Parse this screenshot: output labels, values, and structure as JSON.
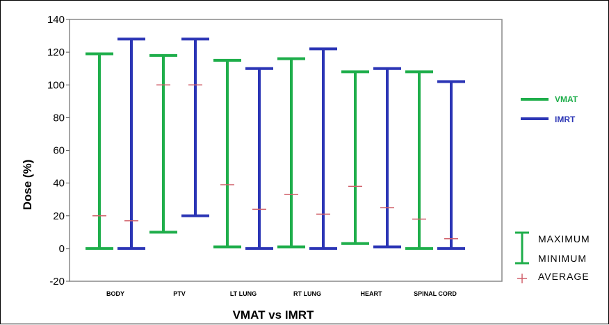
{
  "chart_data": {
    "type": "range",
    "title": "",
    "xlabel": "VMAT vs IMRT",
    "ylabel": "Dose (%)",
    "ylim": [
      -20,
      140
    ],
    "yticks": [
      -20,
      0,
      20,
      40,
      60,
      80,
      100,
      120,
      140
    ],
    "categories": [
      "BODY",
      "PTV",
      "LT LUNG",
      "RT LUNG",
      "HEART",
      "SPINAL CORD"
    ],
    "series": [
      {
        "name": "VMAT",
        "color": "#1fae4b",
        "max": [
          119,
          118,
          115,
          116,
          108,
          108
        ],
        "min": [
          0,
          10,
          1,
          1,
          3,
          0
        ],
        "avg": [
          20,
          100,
          39,
          33,
          38,
          18
        ]
      },
      {
        "name": "IMRT",
        "color": "#2b35b5",
        "max": [
          128,
          128,
          110,
          122,
          110,
          102
        ],
        "min": [
          0,
          20,
          0,
          0,
          1,
          0
        ],
        "avg": [
          17,
          100,
          24,
          21,
          25,
          6
        ]
      }
    ],
    "legend_markers": {
      "maximum": "MAXIMUM",
      "minimum": "MINIMUM",
      "average": "AVERAGE",
      "range_color": "#1fae4b",
      "average_color": "#d0606a"
    }
  }
}
